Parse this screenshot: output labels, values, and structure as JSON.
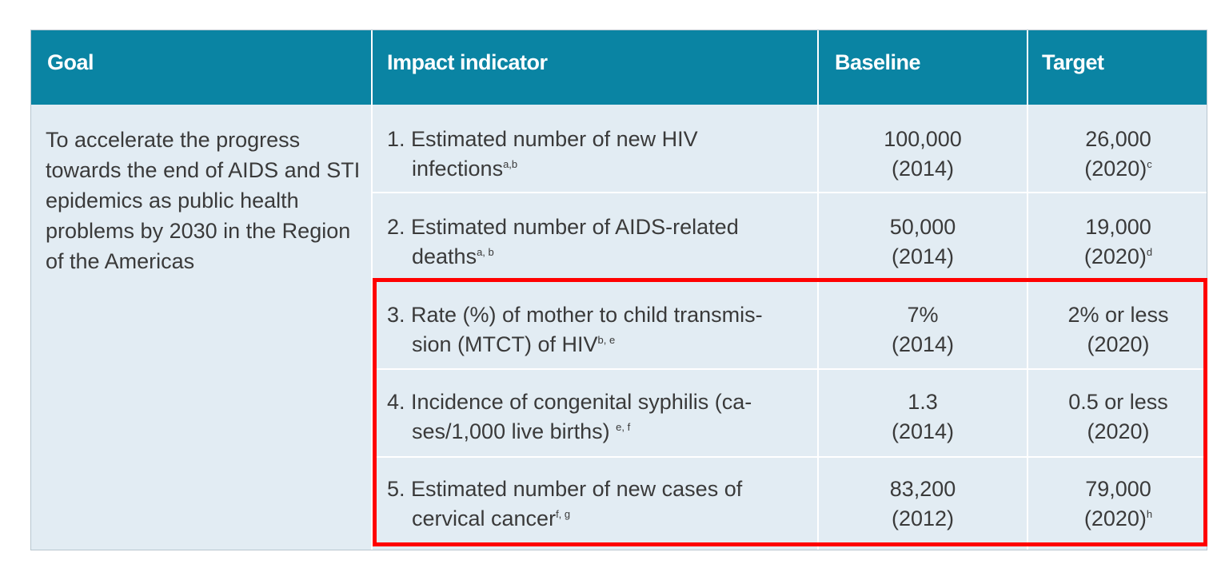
{
  "header": {
    "goal": "Goal",
    "impact_indicator": "Impact indicator",
    "baseline": "Baseline",
    "target": "Target"
  },
  "goal_text": "To accelerate the progress towards the end of AIDS and STI epidemics as public health problems by 2030 in the Region of the Americas",
  "rows": [
    {
      "indicator_line1": "1. Estimated number of new HIV",
      "indicator_line2": "infections",
      "indicator_sup": "a,b",
      "baseline_value": "100,000",
      "baseline_year": "(2014)",
      "target_value": "26,000",
      "target_year": "(2020)",
      "target_sup": "c"
    },
    {
      "indicator_line1": "2. Estimated number of AIDS-related",
      "indicator_line2": "deaths",
      "indicator_sup": "a, b",
      "baseline_value": "50,000",
      "baseline_year": "(2014)",
      "target_value": "19,000",
      "target_year": "(2020)",
      "target_sup": "d"
    },
    {
      "indicator_line1": "3. Rate (%) of mother to child transmis-",
      "indicator_line2": "sion (MTCT) of HIV",
      "indicator_sup": "b, e",
      "baseline_value": "7%",
      "baseline_year": "(2014)",
      "target_value": "2% or less",
      "target_year": "(2020)",
      "target_sup": ""
    },
    {
      "indicator_line1": "4. Incidence of congenital syphilis (ca-",
      "indicator_line2": "ses/1,000 live births) ",
      "indicator_sup": "e, f",
      "baseline_value": "1.3",
      "baseline_year": "(2014)",
      "target_value": "0.5 or less",
      "target_year": "(2020)",
      "target_sup": ""
    },
    {
      "indicator_line1": "5. Estimated number of new cases of",
      "indicator_line2": "cervical cancer",
      "indicator_sup": "f, g",
      "baseline_value": "83,200",
      "baseline_year": "(2012)",
      "target_value": "79,000",
      "target_year": "(2020)",
      "target_sup": "h"
    }
  ],
  "colors": {
    "header_bg": "#0a84a3",
    "body_bg": "#e2ecf3",
    "highlight": "#ff0000"
  }
}
